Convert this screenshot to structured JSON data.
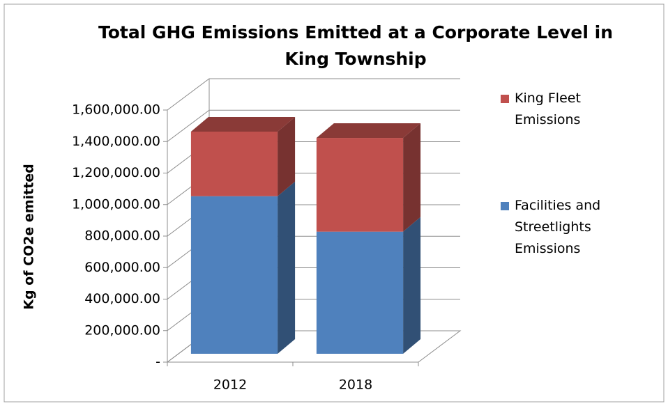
{
  "chart_data": {
    "type": "bar3d_stacked",
    "title": "Total GHG Emissions Emitted at a Corporate Level in King Township",
    "y_label": "Kg of CO2e emitted",
    "categories": [
      "2012",
      "2018"
    ],
    "series": [
      {
        "name": "Facilities and Streetlights Emissions",
        "color": "#4f81bd",
        "values": [
          1000000,
          775000
        ]
      },
      {
        "name": "King Fleet Emissions",
        "color": "#c0504d",
        "values": [
          410000,
          595000
        ]
      }
    ],
    "ylim": [
      0,
      1600000
    ],
    "yticks": [
      {
        "value": 0,
        "label": "-"
      },
      {
        "value": 200000,
        "label": "200,000.00"
      },
      {
        "value": 400000,
        "label": "400,000.00"
      },
      {
        "value": 600000,
        "label": "600,000.00"
      },
      {
        "value": 800000,
        "label": "800,000.00"
      },
      {
        "value": 1000000,
        "label": "1,000,000.00"
      },
      {
        "value": 1200000,
        "label": "1,200,000.00"
      },
      {
        "value": 1400000,
        "label": "1,400,000.00"
      },
      {
        "value": 1600000,
        "label": "1,600,000.00"
      }
    ],
    "grid": true,
    "legend": "right"
  }
}
